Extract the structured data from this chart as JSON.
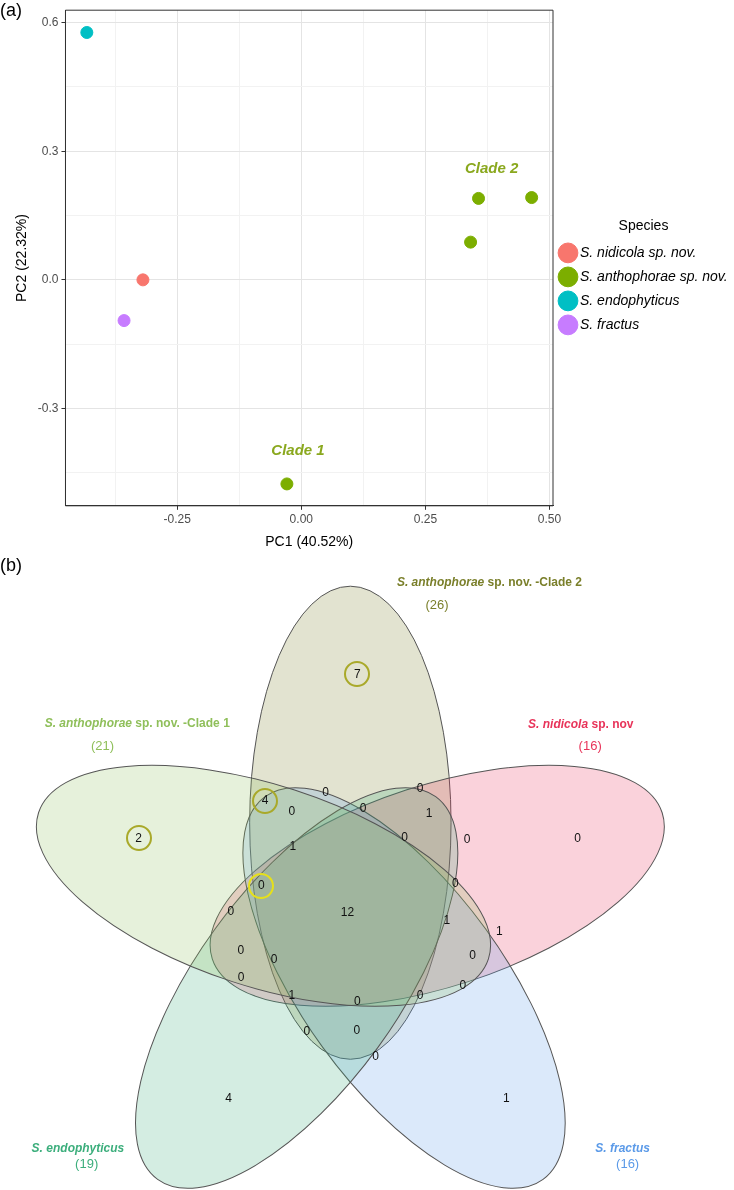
{
  "chart_data": [
    {
      "type": "scatter",
      "xlabel": "PC1 (40.52%)",
      "ylabel": "PC2 (22.32%)",
      "legend_title": "Species",
      "legend": "right",
      "grid": true,
      "marker": "circle",
      "xlim": [
        -0.475,
        0.507
      ],
      "ylim": [
        -0.527,
        0.629
      ],
      "xticks": [
        {
          "value": -0.375,
          "label": null
        },
        -0.25,
        {
          "value": -0.125,
          "label": null
        },
        {
          "value": 0,
          "label": "0.00"
        },
        {
          "value": 0.125,
          "label": null
        },
        0.25,
        {
          "value": 0.375,
          "label": null
        },
        {
          "value": 0.5,
          "label": "0.50"
        }
      ],
      "yticks": [
        {
          "value": -0.45,
          "label": null
        },
        -0.3,
        {
          "value": -0.15,
          "label": null
        },
        {
          "value": 0,
          "label": "0.0"
        },
        {
          "value": 0.15,
          "label": null
        },
        0.3,
        {
          "value": 0.45,
          "label": null
        },
        0.6
      ],
      "series": [
        {
          "name": "S. nidicola sp. nov.",
          "color": "#f8766d",
          "x": [
            -0.319
          ],
          "values": [
            0.0
          ]
        },
        {
          "name": "S. anthophorae sp. nov.",
          "color": "#7cae00",
          "x": [
            0.357,
            0.464,
            0.341,
            -0.029
          ],
          "values": [
            0.19,
            0.192,
            0.088,
            -0.476
          ]
        },
        {
          "name": "S. endophyticus",
          "color": "#00bfc4",
          "x": [
            -0.432
          ],
          "values": [
            0.577
          ]
        },
        {
          "name": "S. fractus",
          "color": "#c77cff",
          "x": [
            -0.357
          ],
          "values": [
            -0.095
          ]
        }
      ],
      "annotations": [
        "(a)",
        "Clade 2",
        "Clade 1"
      ]
    },
    {
      "type": "other",
      "categories": [
        "S. anthophorae sp. nov. -Clade 2",
        "S. nidicola sp. nov",
        "S. fractus",
        "S. endophyticus",
        "S. anthophorae sp. nov. -Clade 1"
      ],
      "value_labels": [
        "(26)",
        "(16)",
        "(16)",
        "(19)",
        "(21)"
      ],
      "colors": [
        "#7a7f2a",
        "#e8345a",
        "#5b9ae8",
        "#3cae7c",
        "#8fbf5a"
      ],
      "annotations": [
        "(b)",
        "7",
        "2",
        "0",
        "4",
        "1",
        "4",
        "0",
        "0",
        "0",
        "0",
        "1",
        "1",
        "0",
        "0",
        "0",
        "0",
        "0",
        "12",
        "1",
        "1",
        "0",
        "0",
        "0",
        "0",
        "0",
        "1",
        "0",
        "0",
        "0",
        "0",
        "0"
      ]
    }
  ]
}
